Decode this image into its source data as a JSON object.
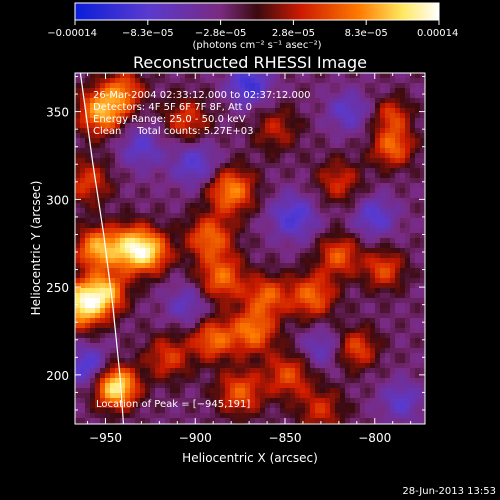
{
  "chart_data": {
    "type": "heatmap",
    "title": "Reconstructed RHESSI Image",
    "xlabel": "Heliocentric X (arcsec)",
    "ylabel": "Heliocentric Y (arcsec)",
    "xlim": [
      -967,
      -772
    ],
    "ylim": [
      172,
      372
    ],
    "x_ticks": [
      -950,
      -900,
      -850,
      -800
    ],
    "x_tick_labels": [
      "−950",
      "−900",
      "−850",
      "−800"
    ],
    "y_ticks": [
      200,
      250,
      300,
      350
    ],
    "y_tick_labels": [
      "200",
      "250",
      "300",
      "350"
    ],
    "colorbar": {
      "range": [
        -0.00014,
        0.00014
      ],
      "tick_labels": [
        "−0.00014",
        "−8.3e−05",
        "−2.8e−05",
        "2.8e−05",
        "8.3e−05",
        "0.00014"
      ],
      "units_label": "(photons cm⁻² s⁻¹ asec⁻²)",
      "colors": [
        "#0a1ed8",
        "#5a3ad0",
        "#8a2a90",
        "#3a0a10",
        "#cc1a00",
        "#ff7a00",
        "#ffe860",
        "#ffffff"
      ]
    },
    "annotations": [
      "26-Mar-2004 02:33:12.000 to 02:37:12.000",
      "Detectors: 4F 5F 6F 7F 8F, Att 0",
      "Energy Range: 25.0 - 50.0 keV",
      "Clean     Total counts: 5.27E+03"
    ],
    "peak_label": "Location of Peak = [−945,191]",
    "peak": [
      -945,
      191
    ],
    "sources": [
      {
        "x": -944,
        "y": 193,
        "amp": 1.0,
        "sig": 8
      },
      {
        "x": -963,
        "y": 240,
        "amp": 0.95,
        "sig": 9
      },
      {
        "x": -950,
        "y": 247,
        "amp": 0.7,
        "sig": 8
      },
      {
        "x": -936,
        "y": 272,
        "amp": 0.8,
        "sig": 9
      },
      {
        "x": -955,
        "y": 272,
        "amp": 0.7,
        "sig": 8
      },
      {
        "x": -925,
        "y": 270,
        "amp": 0.6,
        "sig": 8
      },
      {
        "x": -952,
        "y": 350,
        "amp": 0.75,
        "sig": 9
      },
      {
        "x": -940,
        "y": 362,
        "amp": 0.5,
        "sig": 8
      },
      {
        "x": -880,
        "y": 305,
        "amp": 0.65,
        "sig": 9
      },
      {
        "x": -892,
        "y": 278,
        "amp": 0.55,
        "sig": 9
      },
      {
        "x": -885,
        "y": 255,
        "amp": 0.55,
        "sig": 9
      },
      {
        "x": -868,
        "y": 225,
        "amp": 0.6,
        "sig": 9
      },
      {
        "x": -890,
        "y": 220,
        "amp": 0.55,
        "sig": 8
      },
      {
        "x": -875,
        "y": 190,
        "amp": 0.5,
        "sig": 9
      },
      {
        "x": -860,
        "y": 245,
        "amp": 0.5,
        "sig": 8
      },
      {
        "x": -835,
        "y": 245,
        "amp": 0.55,
        "sig": 9
      },
      {
        "x": -820,
        "y": 268,
        "amp": 0.5,
        "sig": 8
      },
      {
        "x": -795,
        "y": 260,
        "amp": 0.45,
        "sig": 8
      },
      {
        "x": -810,
        "y": 215,
        "amp": 0.45,
        "sig": 8
      },
      {
        "x": -790,
        "y": 330,
        "amp": 0.55,
        "sig": 8
      },
      {
        "x": -790,
        "y": 348,
        "amp": 0.4,
        "sig": 7
      },
      {
        "x": -820,
        "y": 310,
        "amp": 0.35,
        "sig": 9
      },
      {
        "x": -905,
        "y": 345,
        "amp": 0.4,
        "sig": 9
      },
      {
        "x": -960,
        "y": 310,
        "amp": 0.4,
        "sig": 9
      },
      {
        "x": -848,
        "y": 200,
        "amp": 0.45,
        "sig": 9
      },
      {
        "x": -855,
        "y": 340,
        "amp": 0.3,
        "sig": 9
      },
      {
        "x": -915,
        "y": 210,
        "amp": 0.4,
        "sig": 9
      },
      {
        "x": -830,
        "y": 180,
        "amp": 0.35,
        "sig": 9
      },
      {
        "x": -870,
        "y": 365,
        "amp": -0.55,
        "sig": 8
      },
      {
        "x": -900,
        "y": 320,
        "amp": -0.4,
        "sig": 9
      },
      {
        "x": -845,
        "y": 290,
        "amp": -0.45,
        "sig": 9
      },
      {
        "x": -800,
        "y": 290,
        "amp": -0.4,
        "sig": 8
      },
      {
        "x": -815,
        "y": 350,
        "amp": -0.35,
        "sig": 8
      },
      {
        "x": -960,
        "y": 205,
        "amp": -0.45,
        "sig": 8
      },
      {
        "x": -930,
        "y": 330,
        "amp": -0.35,
        "sig": 9
      },
      {
        "x": -905,
        "y": 240,
        "amp": -0.3,
        "sig": 8
      },
      {
        "x": -830,
        "y": 215,
        "amp": -0.3,
        "sig": 8
      },
      {
        "x": -785,
        "y": 185,
        "amp": -0.35,
        "sig": 8
      }
    ],
    "limb_points": [
      [
        -964,
        372
      ],
      [
        -957,
        320
      ],
      [
        -951,
        280
      ],
      [
        -946,
        240
      ],
      [
        -942,
        200
      ],
      [
        -940,
        172
      ]
    ]
  },
  "footer": {
    "date_stamp": "28-Jun-2013 13:53"
  }
}
